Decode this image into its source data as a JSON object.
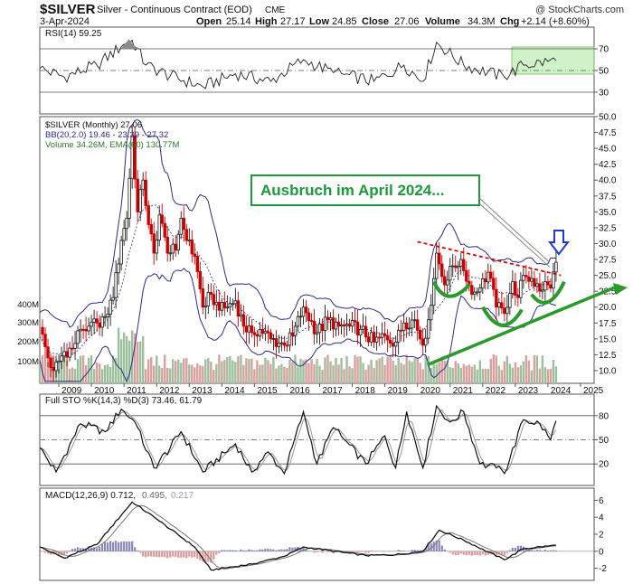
{
  "header": {
    "symbol": "$SILVER",
    "description": "Silver - Continuous Contract (EOD)",
    "exchange": "CME",
    "watermark": "@ StockCharts.com",
    "date": "3-Apr-2024",
    "open_label": "Open",
    "open": "25.14",
    "high_label": "High",
    "high": "27.17",
    "low_label": "Low",
    "low": "24.85",
    "close_label": "Close",
    "close": "27.06",
    "volume_label": "Volume",
    "volume": "34.3M",
    "chg_label": "Chg",
    "chg": "+2.14 (+8.60%)"
  },
  "rsi_panel": {
    "legend": "RSI(14) 59.25",
    "levels": [
      "70",
      "50",
      "30"
    ],
    "overbought": 70,
    "oversold": 30,
    "ylim": [
      10,
      90
    ]
  },
  "price_panel": {
    "legend_main": "$SILVER (Monthly) 27.06",
    "legend_bb": "BB(20,2.0) 19.46 - 23.39 - 27.32",
    "legend_vol": "Volume 34.26M, EMA(60) 130.77M",
    "ylim": [
      8,
      50
    ],
    "y_ticks": [
      "50.0",
      "47.5",
      "45.0",
      "42.5",
      "40.0",
      "37.5",
      "35.0",
      "32.5",
      "30.0",
      "27.5",
      "25.0",
      "22.5",
      "20.0",
      "17.5",
      "15.0",
      "12.5",
      "10.0"
    ],
    "vol_ticks": [
      "400M",
      "300M",
      "200M",
      "100M"
    ],
    "annotation": "Ausbruch im April 2024...",
    "colors": {
      "up": "#1a1a1a",
      "down": "#cc0000",
      "bb": "#2b2b8a",
      "volume_up": "#9cc09c",
      "volume_down": "#d9a0a0",
      "annotation": "#1a9a3a",
      "trend": "#2a9a2a",
      "resistance": "#e00000",
      "arrow_blue": "#1a3ccc"
    }
  },
  "x_axis": {
    "labels": [
      "2009",
      "2010",
      "2011",
      "2012",
      "2013",
      "2014",
      "2015",
      "2016",
      "2017",
      "2018",
      "2019",
      "2020",
      "2021",
      "2022",
      "2023",
      "2024",
      "2025"
    ]
  },
  "sto_panel": {
    "legend": "Full STO %K(14,3) %D(3) 73.46, 61.79",
    "levels": [
      "80",
      "50",
      "20"
    ],
    "ylim": [
      0,
      100
    ]
  },
  "macd_panel": {
    "legend_main": "MACD(12,26,9) 0.712,",
    "legend_signal": "0.495,",
    "legend_hist": "0.217",
    "ticks": [
      "6",
      "4",
      "2",
      "0",
      "-2"
    ],
    "ylim": [
      -3,
      7
    ]
  },
  "chart_data": {
    "type": "candlestick",
    "title": "$SILVER (Monthly)",
    "x_range": [
      "2008-06",
      "2025-06"
    ],
    "close_series": {
      "name": "$SILVER",
      "points": [
        [
          "2008-06",
          16.8
        ],
        [
          "2008-09",
          12.0
        ],
        [
          "2008-11",
          10.0
        ],
        [
          "2009-03",
          13.0
        ],
        [
          "2009-06",
          13.5
        ],
        [
          "2009-09",
          16.5
        ],
        [
          "2009-12",
          17.0
        ],
        [
          "2010-03",
          17.5
        ],
        [
          "2010-06",
          18.5
        ],
        [
          "2010-09",
          21.5
        ],
        [
          "2010-12",
          30.5
        ],
        [
          "2011-02",
          34.0
        ],
        [
          "2011-04",
          47.0
        ],
        [
          "2011-06",
          35.0
        ],
        [
          "2011-08",
          40.0
        ],
        [
          "2011-10",
          33.0
        ],
        [
          "2011-12",
          28.5
        ],
        [
          "2012-02",
          34.5
        ],
        [
          "2012-05",
          28.5
        ],
        [
          "2012-08",
          29.0
        ],
        [
          "2012-10",
          34.0
        ],
        [
          "2012-12",
          30.5
        ],
        [
          "2013-03",
          28.0
        ],
        [
          "2013-06",
          20.0
        ],
        [
          "2013-09",
          22.0
        ],
        [
          "2013-12",
          19.5
        ],
        [
          "2014-03",
          20.0
        ],
        [
          "2014-06",
          21.0
        ],
        [
          "2014-09",
          17.0
        ],
        [
          "2014-12",
          16.0
        ],
        [
          "2015-03",
          16.5
        ],
        [
          "2015-07",
          15.0
        ],
        [
          "2015-12",
          14.0
        ],
        [
          "2016-03",
          15.5
        ],
        [
          "2016-07",
          20.0
        ],
        [
          "2016-12",
          16.0
        ],
        [
          "2017-04",
          18.0
        ],
        [
          "2017-08",
          17.0
        ],
        [
          "2017-12",
          17.0
        ],
        [
          "2018-04",
          16.5
        ],
        [
          "2018-09",
          14.5
        ],
        [
          "2019-01",
          15.5
        ],
        [
          "2019-05",
          14.5
        ],
        [
          "2019-08",
          17.5
        ],
        [
          "2019-12",
          18.0
        ],
        [
          "2020-03",
          14.0
        ],
        [
          "2020-05",
          18.0
        ],
        [
          "2020-07",
          24.5
        ],
        [
          "2020-08",
          28.5
        ],
        [
          "2020-11",
          23.5
        ],
        [
          "2021-02",
          26.5
        ],
        [
          "2021-05",
          27.5
        ],
        [
          "2021-09",
          22.0
        ],
        [
          "2021-12",
          23.0
        ],
        [
          "2022-03",
          25.5
        ],
        [
          "2022-06",
          20.0
        ],
        [
          "2022-09",
          19.0
        ],
        [
          "2022-12",
          24.0
        ],
        [
          "2023-02",
          21.5
        ],
        [
          "2023-04",
          25.0
        ],
        [
          "2023-07",
          24.5
        ],
        [
          "2023-10",
          22.5
        ],
        [
          "2023-12",
          24.0
        ],
        [
          "2024-02",
          23.0
        ],
        [
          "2024-04",
          27.06
        ]
      ]
    },
    "bollinger": {
      "name": "BB(20,2.0)",
      "lower": 19.46,
      "middle": 23.39,
      "upper": 27.32
    },
    "rsi": {
      "name": "RSI(14)",
      "last": 59.25,
      "points": [
        [
          "2008-06",
          52
        ],
        [
          "2009-03",
          44
        ],
        [
          "2010-03",
          55
        ],
        [
          "2010-12",
          72
        ],
        [
          "2011-04",
          78
        ],
        [
          "2011-09",
          55
        ],
        [
          "2012-06",
          45
        ],
        [
          "2013-06",
          35
        ],
        [
          "2014-06",
          47
        ],
        [
          "2015-07",
          40
        ],
        [
          "2016-07",
          60
        ],
        [
          "2017-06",
          48
        ],
        [
          "2018-09",
          40
        ],
        [
          "2019-08",
          55
        ],
        [
          "2020-03",
          40
        ],
        [
          "2020-08",
          76
        ],
        [
          "2021-06",
          55
        ],
        [
          "2022-09",
          44
        ],
        [
          "2023-04",
          55
        ],
        [
          "2024-04",
          59.25
        ]
      ]
    },
    "stochastic": {
      "name": "Full STO %K(14,3) %D(3)",
      "k": 73.46,
      "d": 61.79,
      "points": [
        [
          "2008-06",
          40
        ],
        [
          "2008-12",
          10
        ],
        [
          "2009-09",
          70
        ],
        [
          "2010-06",
          60
        ],
        [
          "2010-12",
          88
        ],
        [
          "2011-05",
          72
        ],
        [
          "2011-12",
          15
        ],
        [
          "2012-06",
          40
        ],
        [
          "2012-10",
          60
        ],
        [
          "2013-06",
          10
        ],
        [
          "2014-06",
          45
        ],
        [
          "2014-12",
          10
        ],
        [
          "2015-06",
          35
        ],
        [
          "2015-12",
          8
        ],
        [
          "2016-07",
          85
        ],
        [
          "2016-12",
          20
        ],
        [
          "2017-06",
          65
        ],
        [
          "2018-06",
          20
        ],
        [
          "2019-01",
          55
        ],
        [
          "2019-05",
          15
        ],
        [
          "2019-09",
          85
        ],
        [
          "2020-03",
          15
        ],
        [
          "2020-08",
          92
        ],
        [
          "2021-01",
          72
        ],
        [
          "2021-06",
          85
        ],
        [
          "2021-12",
          20
        ],
        [
          "2022-06",
          15
        ],
        [
          "2022-09",
          8
        ],
        [
          "2023-04",
          75
        ],
        [
          "2023-10",
          70
        ],
        [
          "2024-02",
          50
        ],
        [
          "2024-04",
          73.46
        ]
      ]
    },
    "macd": {
      "name": "MACD(12,26,9)",
      "macd": 0.712,
      "signal": 0.495,
      "histogram": 0.217,
      "points": [
        [
          "2008-06",
          0.5
        ],
        [
          "2009-03",
          -0.8
        ],
        [
          "2010-03",
          0.8
        ],
        [
          "2011-04",
          5.8
        ],
        [
          "2012-01",
          3.8
        ],
        [
          "2013-03",
          0.5
        ],
        [
          "2013-09",
          -2.2
        ],
        [
          "2014-12",
          -1.5
        ],
        [
          "2015-12",
          -0.6
        ],
        [
          "2016-07",
          0.5
        ],
        [
          "2018-06",
          -0.5
        ],
        [
          "2019-05",
          -0.4
        ],
        [
          "2020-03",
          0.0
        ],
        [
          "2020-09",
          2.5
        ],
        [
          "2021-06",
          1.3
        ],
        [
          "2022-09",
          -1.0
        ],
        [
          "2023-04",
          0.3
        ],
        [
          "2024-04",
          0.712
        ]
      ]
    },
    "volume": {
      "name": "Volume",
      "last": "34.26M",
      "ema_name": "EMA(60)",
      "ema": "130.77M"
    }
  }
}
